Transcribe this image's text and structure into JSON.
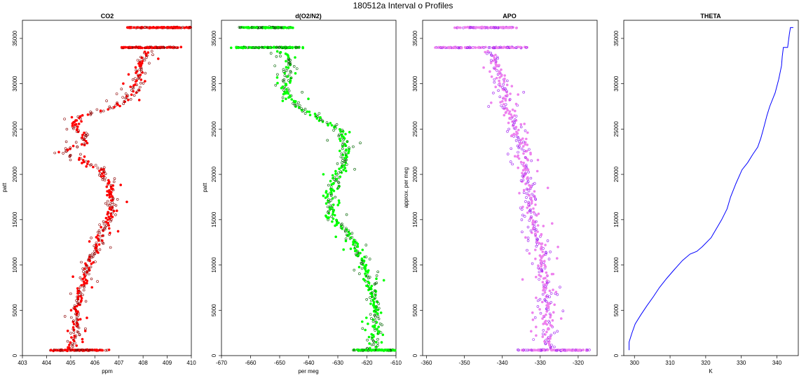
{
  "suptitle": "180512a   Interval o Profiles",
  "colors": {
    "co2": "#ff0000",
    "co2_edge": "#8b0000",
    "o2n2": "#00ff00",
    "o2n2_edge": "#006400",
    "apo": "#ee82ee",
    "apo_edge": "#a020f0",
    "theta": "#0000ff"
  },
  "chart_data": [
    {
      "type": "scatter",
      "title": "CO2",
      "xlabel": "ppm",
      "ylabel": "patt",
      "xlim": [
        403,
        410
      ],
      "ylim": [
        0,
        37000
      ],
      "xticks": [
        403,
        404,
        405,
        406,
        407,
        408,
        409,
        410
      ],
      "yticks": [
        0,
        5000,
        10000,
        15000,
        20000,
        25000,
        30000,
        35000
      ],
      "grid": false,
      "profile": [
        [
          405.0,
          600
        ],
        [
          405.3,
          3000
        ],
        [
          405.2,
          5000
        ],
        [
          405.4,
          7000
        ],
        [
          405.6,
          9000
        ],
        [
          405.9,
          11000
        ],
        [
          406.2,
          13000
        ],
        [
          406.6,
          15000
        ],
        [
          406.7,
          17000
        ],
        [
          406.6,
          19000
        ],
        [
          406.2,
          20500
        ],
        [
          405.6,
          21500
        ],
        [
          404.6,
          22400
        ],
        [
          405.5,
          23300
        ],
        [
          405.6,
          24300
        ],
        [
          405.1,
          25400
        ],
        [
          405.3,
          26300
        ],
        [
          406.9,
          27500
        ],
        [
          407.6,
          29000
        ],
        [
          407.9,
          31000
        ],
        [
          408.0,
          33000
        ],
        [
          408.5,
          34000
        ],
        [
          409.0,
          36200
        ]
      ],
      "bands": [
        {
          "y": 600,
          "x": [
            404.1,
            406.6
          ]
        },
        {
          "y": 34000,
          "x": [
            407.0,
            409.6
          ]
        },
        {
          "y": 36200,
          "x": [
            407.3,
            410.0
          ]
        }
      ]
    },
    {
      "type": "scatter",
      "title": "d(O2/N2)",
      "xlabel": "per meg",
      "ylabel": "patt",
      "xlim": [
        -670,
        -610
      ],
      "ylim": [
        0,
        37000
      ],
      "xticks": [
        -670,
        -660,
        -650,
        -640,
        -630,
        -620,
        -610
      ],
      "yticks": [
        0,
        5000,
        10000,
        15000,
        20000,
        25000,
        30000,
        35000
      ],
      "grid": false,
      "profile": [
        [
          -617,
          600
        ],
        [
          -617,
          3000
        ],
        [
          -617,
          5000
        ],
        [
          -618,
          7000
        ],
        [
          -620,
          9000
        ],
        [
          -622,
          11000
        ],
        [
          -625,
          13000
        ],
        [
          -632,
          15000
        ],
        [
          -633,
          17000
        ],
        [
          -632,
          19000
        ],
        [
          -628,
          21000
        ],
        [
          -627,
          23000
        ],
        [
          -630,
          25000
        ],
        [
          -644,
          27500
        ],
        [
          -648,
          29500
        ],
        [
          -647,
          31500
        ],
        [
          -646,
          33000
        ],
        [
          -655,
          34000
        ],
        [
          -657,
          36200
        ]
      ],
      "bands": [
        {
          "y": 600,
          "x": [
            -625,
            -607
          ]
        },
        {
          "y": 34000,
          "x": [
            -668,
            -642
          ]
        },
        {
          "y": 36200,
          "x": [
            -664,
            -645
          ]
        }
      ]
    },
    {
      "type": "scatter",
      "title": "APO",
      "xlabel": "",
      "ylabel": "approx. per meg",
      "xlim": [
        -361,
        -315
      ],
      "ylim": [
        0,
        37000
      ],
      "xticks": [
        -360,
        -350,
        -340,
        -330,
        -320
      ],
      "yticks": [
        0,
        5000,
        10000,
        15000,
        20000,
        25000,
        30000,
        35000
      ],
      "grid": false,
      "profile": [
        [
          -328,
          600
        ],
        [
          -328,
          3000
        ],
        [
          -328,
          6000
        ],
        [
          -329,
          9000
        ],
        [
          -330,
          12000
        ],
        [
          -332,
          15000
        ],
        [
          -333,
          18000
        ],
        [
          -334,
          21000
        ],
        [
          -335,
          24000
        ],
        [
          -338,
          27000
        ],
        [
          -340,
          30000
        ],
        [
          -342,
          32500
        ],
        [
          -343,
          34000
        ],
        [
          -346,
          36200
        ]
      ],
      "bands": [
        {
          "y": 600,
          "x": [
            -336,
            -317
          ]
        },
        {
          "y": 34000,
          "x": [
            -358,
            -333
          ]
        },
        {
          "y": 36200,
          "x": [
            -353,
            -336
          ]
        }
      ]
    },
    {
      "type": "line",
      "title": "THETA",
      "xlabel": "K",
      "ylabel": "",
      "xlim": [
        297,
        346
      ],
      "ylim": [
        0,
        37000
      ],
      "xticks": [
        300,
        310,
        320,
        330,
        340
      ],
      "yticks": [
        0,
        5000,
        10000,
        15000,
        20000,
        25000,
        30000,
        35000
      ],
      "grid": false,
      "x": [
        298.5,
        298.5,
        299.3,
        300.2,
        301.8,
        303.5,
        305.3,
        307.0,
        309.0,
        311.2,
        313.5,
        315.6,
        317.5,
        319.0,
        321.5,
        323.0,
        324.5,
        326.0,
        327.0,
        328.5,
        330.2,
        331.8,
        333.2,
        334.6,
        335.5,
        336.2,
        337.2,
        338.0,
        339.5,
        340.5,
        341.3,
        341.5,
        341.8,
        343.0,
        343.5,
        343.8,
        344.6
      ],
      "y": [
        600,
        1500,
        2500,
        3500,
        4500,
        5500,
        6500,
        7500,
        8500,
        9500,
        10500,
        11200,
        11500,
        12000,
        13000,
        14000,
        15000,
        16200,
        17500,
        19000,
        20500,
        21300,
        22200,
        23000,
        24000,
        25000,
        26500,
        27500,
        29000,
        30500,
        32000,
        33000,
        34000,
        34000,
        35500,
        36200,
        36200
      ]
    }
  ]
}
